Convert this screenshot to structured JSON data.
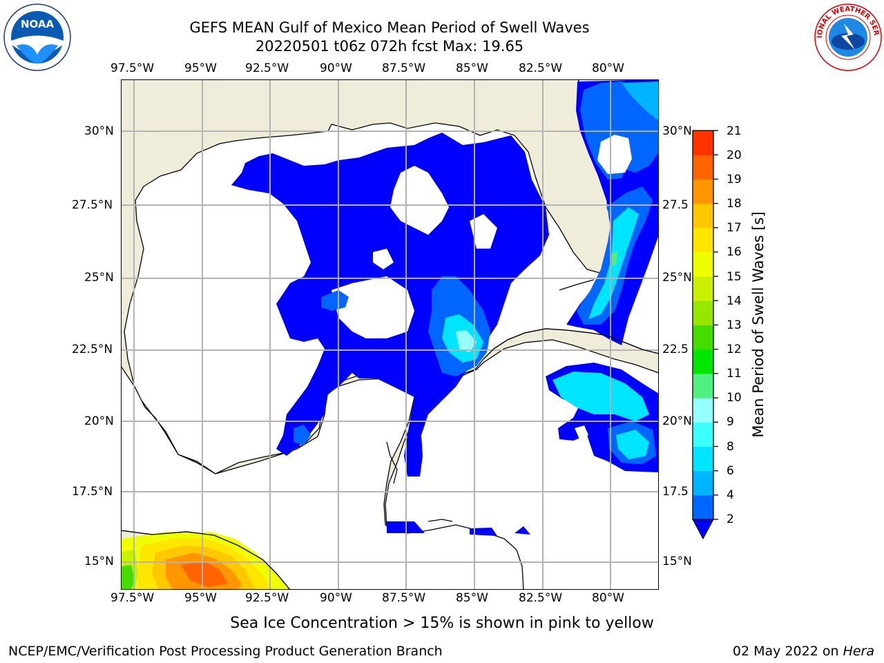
{
  "header": {
    "title": "GEFS MEAN Gulf of Mexico Mean Period of Swell Waves",
    "subtitle": "20220501 t06z 072h fcst   Max: 19.65"
  },
  "logos": {
    "noaa_text": "NOAA",
    "nws_text": "NATIONAL WEATHER SERVICE"
  },
  "map": {
    "lon_ticks": [
      "97.5°W",
      "95°W",
      "92.5°W",
      "90°W",
      "87.5°W",
      "85°W",
      "82.5°W",
      "80°W"
    ],
    "lat_ticks_left": [
      "30°N",
      "27.5°N",
      "25°N",
      "22.5°N",
      "20°N",
      "17.5°N",
      "15°N"
    ],
    "lat_ticks_right": [
      "30°N",
      "27.5",
      "25°N",
      "22.5",
      "20°N",
      "17.5",
      "15°N"
    ]
  },
  "colorbar": {
    "label": "Mean Period of Swell Waves [s]",
    "ticks": [
      "2",
      "4",
      "6",
      "8",
      "9",
      "10",
      "11",
      "12",
      "13",
      "14",
      "15",
      "16",
      "17",
      "18",
      "19",
      "20",
      "21"
    ],
    "colors": [
      "#0066ff",
      "#00b4ff",
      "#00e5ff",
      "#3cffff",
      "#96ffff",
      "#50f082",
      "#00e600",
      "#46dc00",
      "#96e600",
      "#c8f000",
      "#f0ff00",
      "#ffe600",
      "#ffc800",
      "#ff9600",
      "#ff6400",
      "#ff3200",
      "#ff0000"
    ],
    "extend_color": "#0000ff"
  },
  "note": "Sea Ice Concentration > 15% is shown in pink to yellow",
  "footer": {
    "left": "NCEP/EMC/Verification Post Processing Product Generation Branch",
    "right_date": "02 May 2022 on ",
    "right_host": "Hera"
  }
}
